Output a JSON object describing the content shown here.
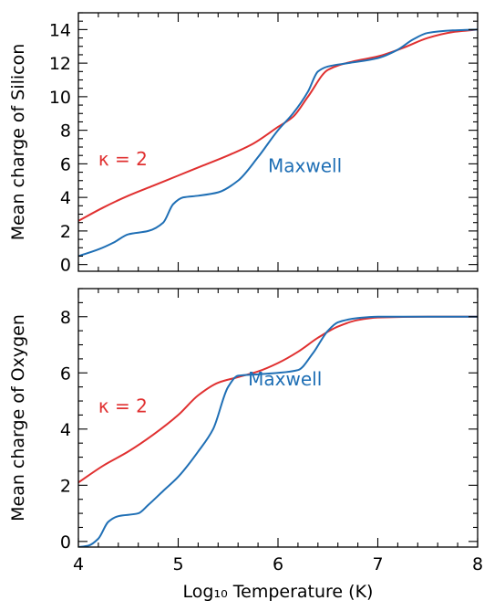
{
  "colors": {
    "kappa": "#e03030",
    "maxwell": "#1f6fb5",
    "axes": "#000000"
  },
  "chart_data": [
    {
      "type": "line",
      "panel": "top",
      "title": "",
      "xlabel": "",
      "ylabel": "Mean charge of Silicon",
      "xlim": [
        4,
        8
      ],
      "ylim": [
        -0.4,
        15
      ],
      "xticks": [
        4,
        5,
        6,
        7,
        8
      ],
      "yticks": [
        0,
        2,
        4,
        6,
        8,
        10,
        12,
        14
      ],
      "show_x_tick_labels": false,
      "annotations": [
        {
          "text": "κ = 2",
          "series": "kappa",
          "x": 4.2,
          "y": 5.9
        },
        {
          "text": "Maxwell",
          "series": "maxwell",
          "x": 5.9,
          "y": 5.5
        }
      ],
      "series": [
        {
          "key": "kappa",
          "x": [
            4.0,
            4.25,
            4.5,
            4.75,
            5.0,
            5.25,
            5.5,
            5.75,
            6.0,
            6.15,
            6.3,
            6.5,
            6.75,
            7.0,
            7.25,
            7.5,
            7.75,
            8.0
          ],
          "y": [
            2.6,
            3.4,
            4.1,
            4.7,
            5.3,
            5.9,
            6.5,
            7.2,
            8.2,
            8.8,
            10.0,
            11.6,
            12.1,
            12.4,
            12.9,
            13.5,
            13.85,
            14.0
          ]
        },
        {
          "key": "maxwell",
          "x": [
            4.0,
            4.2,
            4.35,
            4.5,
            4.7,
            4.85,
            4.95,
            5.05,
            5.2,
            5.4,
            5.6,
            5.8,
            6.0,
            6.15,
            6.3,
            6.4,
            6.5,
            6.7,
            7.0,
            7.2,
            7.35,
            7.5,
            7.75,
            8.0
          ],
          "y": [
            0.5,
            0.9,
            1.3,
            1.8,
            2.0,
            2.5,
            3.6,
            4.0,
            4.1,
            4.3,
            5.0,
            6.4,
            8.0,
            9.0,
            10.3,
            11.5,
            11.8,
            12.0,
            12.3,
            12.8,
            13.4,
            13.8,
            13.95,
            14.0
          ]
        }
      ]
    },
    {
      "type": "line",
      "panel": "bottom",
      "title": "",
      "xlabel": "Log₁₀ Temperature (K)",
      "ylabel": "Mean charge of Oxygen",
      "xlim": [
        4,
        8
      ],
      "ylim": [
        -0.2,
        9
      ],
      "xticks": [
        4,
        5,
        6,
        7,
        8
      ],
      "yticks": [
        0,
        2,
        4,
        6,
        8
      ],
      "show_x_tick_labels": true,
      "annotations": [
        {
          "text": "κ = 2",
          "series": "kappa",
          "x": 4.2,
          "y": 4.6
        },
        {
          "text": "Maxwell",
          "series": "maxwell",
          "x": 5.7,
          "y": 5.55
        }
      ],
      "series": [
        {
          "key": "kappa",
          "x": [
            4.0,
            4.25,
            4.5,
            4.75,
            5.0,
            5.2,
            5.4,
            5.6,
            5.8,
            6.0,
            6.2,
            6.4,
            6.6,
            6.8,
            7.0,
            7.5,
            8.0
          ],
          "y": [
            2.1,
            2.7,
            3.2,
            3.8,
            4.5,
            5.2,
            5.65,
            5.85,
            6.05,
            6.35,
            6.75,
            7.25,
            7.65,
            7.88,
            7.97,
            8.0,
            8.0
          ]
        },
        {
          "key": "maxwell",
          "x": [
            4.0,
            4.1,
            4.2,
            4.3,
            4.4,
            4.6,
            4.7,
            4.85,
            5.0,
            5.2,
            5.35,
            5.5,
            5.6,
            5.8,
            6.0,
            6.2,
            6.35,
            6.5,
            6.6,
            6.8,
            7.0,
            7.5,
            8.0
          ],
          "y": [
            -0.2,
            -0.15,
            0.1,
            0.7,
            0.9,
            1.0,
            1.3,
            1.8,
            2.3,
            3.2,
            4.0,
            5.5,
            5.9,
            5.95,
            6.0,
            6.1,
            6.7,
            7.5,
            7.8,
            7.95,
            8.0,
            8.0,
            8.0
          ]
        }
      ]
    }
  ]
}
